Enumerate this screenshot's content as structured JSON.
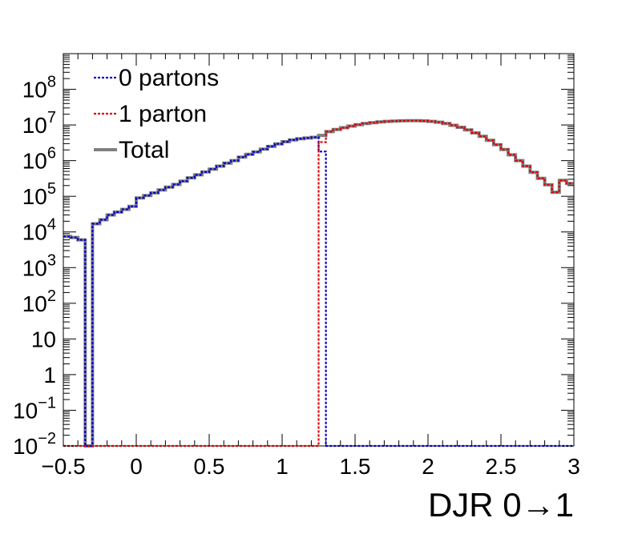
{
  "chart_data": {
    "type": "line",
    "style": "step histogram",
    "xlabel": "DJR 0→1",
    "ylabel": "",
    "xlim": [
      -0.5,
      3.0
    ],
    "ylim": [
      0.01,
      1000000000
    ],
    "yscale": "log",
    "grid": false,
    "legend_position": "top-left",
    "x_ticks": [
      {
        "value": -0.5,
        "label": "−0.5"
      },
      {
        "value": 0,
        "label": "0"
      },
      {
        "value": 0.5,
        "label": "0.5"
      },
      {
        "value": 1,
        "label": "1"
      },
      {
        "value": 1.5,
        "label": "1.5"
      },
      {
        "value": 2,
        "label": "2"
      },
      {
        "value": 2.5,
        "label": "2.5"
      },
      {
        "value": 3,
        "label": "3"
      }
    ],
    "y_ticks": [
      {
        "value": 0.01,
        "base": "10",
        "exp": "−2"
      },
      {
        "value": 0.1,
        "base": "10",
        "exp": "−1"
      },
      {
        "value": 1,
        "base": "1",
        "exp": ""
      },
      {
        "value": 10,
        "base": "10",
        "exp": ""
      },
      {
        "value": 100,
        "base": "10",
        "exp": "2"
      },
      {
        "value": 1000,
        "base": "10",
        "exp": "3"
      },
      {
        "value": 10000,
        "base": "10",
        "exp": "4"
      },
      {
        "value": 100000,
        "base": "10",
        "exp": "5"
      },
      {
        "value": 1000000,
        "base": "10",
        "exp": "6"
      },
      {
        "value": 10000000,
        "base": "10",
        "exp": "7"
      },
      {
        "value": 100000000,
        "base": "10",
        "exp": "8"
      }
    ],
    "series": [
      {
        "name": "0 partons",
        "color": "#0000cc",
        "line": "dotted",
        "x": [
          -0.5,
          -0.45,
          -0.4,
          -0.35,
          -0.3,
          -0.25,
          -0.2,
          -0.15,
          -0.1,
          -0.05,
          0.0,
          0.05,
          0.1,
          0.15,
          0.2,
          0.25,
          0.3,
          0.35,
          0.4,
          0.45,
          0.5,
          0.55,
          0.6,
          0.65,
          0.7,
          0.75,
          0.8,
          0.85,
          0.9,
          0.95,
          1.0,
          1.05,
          1.1,
          1.15,
          1.2,
          1.25,
          1.3
        ],
        "y": [
          7500,
          7000,
          6000,
          0,
          17000,
          22000,
          30000,
          36000,
          43000,
          52000,
          90000,
          105000,
          125000,
          150000,
          180000,
          215000,
          265000,
          330000,
          400000,
          480000,
          580000,
          700000,
          850000,
          1000000,
          1250000,
          1500000,
          1750000,
          2100000,
          2500000,
          2950000,
          3400000,
          3800000,
          4100000,
          4300000,
          4500000,
          1800000,
          0
        ]
      },
      {
        "name": "1 parton",
        "color": "#dd0000",
        "line": "dotted",
        "x": [
          -0.5,
          1.2,
          1.25,
          1.3,
          1.35,
          1.4,
          1.45,
          1.5,
          1.55,
          1.6,
          1.65,
          1.7,
          1.75,
          1.8,
          1.85,
          1.9,
          1.95,
          2.0,
          2.05,
          2.1,
          2.15,
          2.2,
          2.25,
          2.3,
          2.35,
          2.4,
          2.45,
          2.5,
          2.55,
          2.6,
          2.65,
          2.7,
          2.75,
          2.8,
          2.85,
          2.9,
          2.95
        ],
        "y": [
          0,
          0,
          3300000,
          6500000,
          7500000,
          8400000,
          9300000,
          10200000,
          11000000,
          11600000,
          12200000,
          12600000,
          12900000,
          13100000,
          13200000,
          13200000,
          13000000,
          12600000,
          12000000,
          11000000,
          9800000,
          8600000,
          7300000,
          6000000,
          4800000,
          3700000,
          2800000,
          2050000,
          1450000,
          1000000,
          700000,
          470000,
          320000,
          210000,
          130000,
          280000,
          230000
        ]
      },
      {
        "name": "Total",
        "color": "#808080",
        "line": "solid",
        "x": [
          -0.5,
          -0.45,
          -0.4,
          -0.35,
          -0.3,
          -0.25,
          -0.2,
          -0.15,
          -0.1,
          -0.05,
          0.0,
          0.05,
          0.1,
          0.15,
          0.2,
          0.25,
          0.3,
          0.35,
          0.4,
          0.45,
          0.5,
          0.55,
          0.6,
          0.65,
          0.7,
          0.75,
          0.8,
          0.85,
          0.9,
          0.95,
          1.0,
          1.05,
          1.1,
          1.15,
          1.2,
          1.25,
          1.3,
          1.35,
          1.4,
          1.45,
          1.5,
          1.55,
          1.6,
          1.65,
          1.7,
          1.75,
          1.8,
          1.85,
          1.9,
          1.95,
          2.0,
          2.05,
          2.1,
          2.15,
          2.2,
          2.25,
          2.3,
          2.35,
          2.4,
          2.45,
          2.5,
          2.55,
          2.6,
          2.65,
          2.7,
          2.75,
          2.8,
          2.85,
          2.9,
          2.95
        ],
        "y": [
          7500,
          7000,
          6000,
          0,
          17000,
          22000,
          30000,
          36000,
          43000,
          52000,
          90000,
          105000,
          125000,
          150000,
          180000,
          215000,
          265000,
          330000,
          400000,
          480000,
          580000,
          700000,
          850000,
          1000000,
          1250000,
          1500000,
          1750000,
          2100000,
          2500000,
          2950000,
          3400000,
          3800000,
          4100000,
          4300000,
          4500000,
          5100000,
          6500000,
          7500000,
          8400000,
          9300000,
          10200000,
          11000000,
          11600000,
          12200000,
          12600000,
          12900000,
          13100000,
          13200000,
          13200000,
          13000000,
          12600000,
          12000000,
          11000000,
          9800000,
          8600000,
          7300000,
          6000000,
          4800000,
          3700000,
          2800000,
          2050000,
          1450000,
          1000000,
          700000,
          470000,
          320000,
          210000,
          130000,
          280000,
          230000
        ]
      }
    ],
    "bin_width": 0.05,
    "colors": {
      "series_0": "#0000cc",
      "series_1": "#dd0000",
      "total": "#808080",
      "axis": "#000000"
    }
  }
}
